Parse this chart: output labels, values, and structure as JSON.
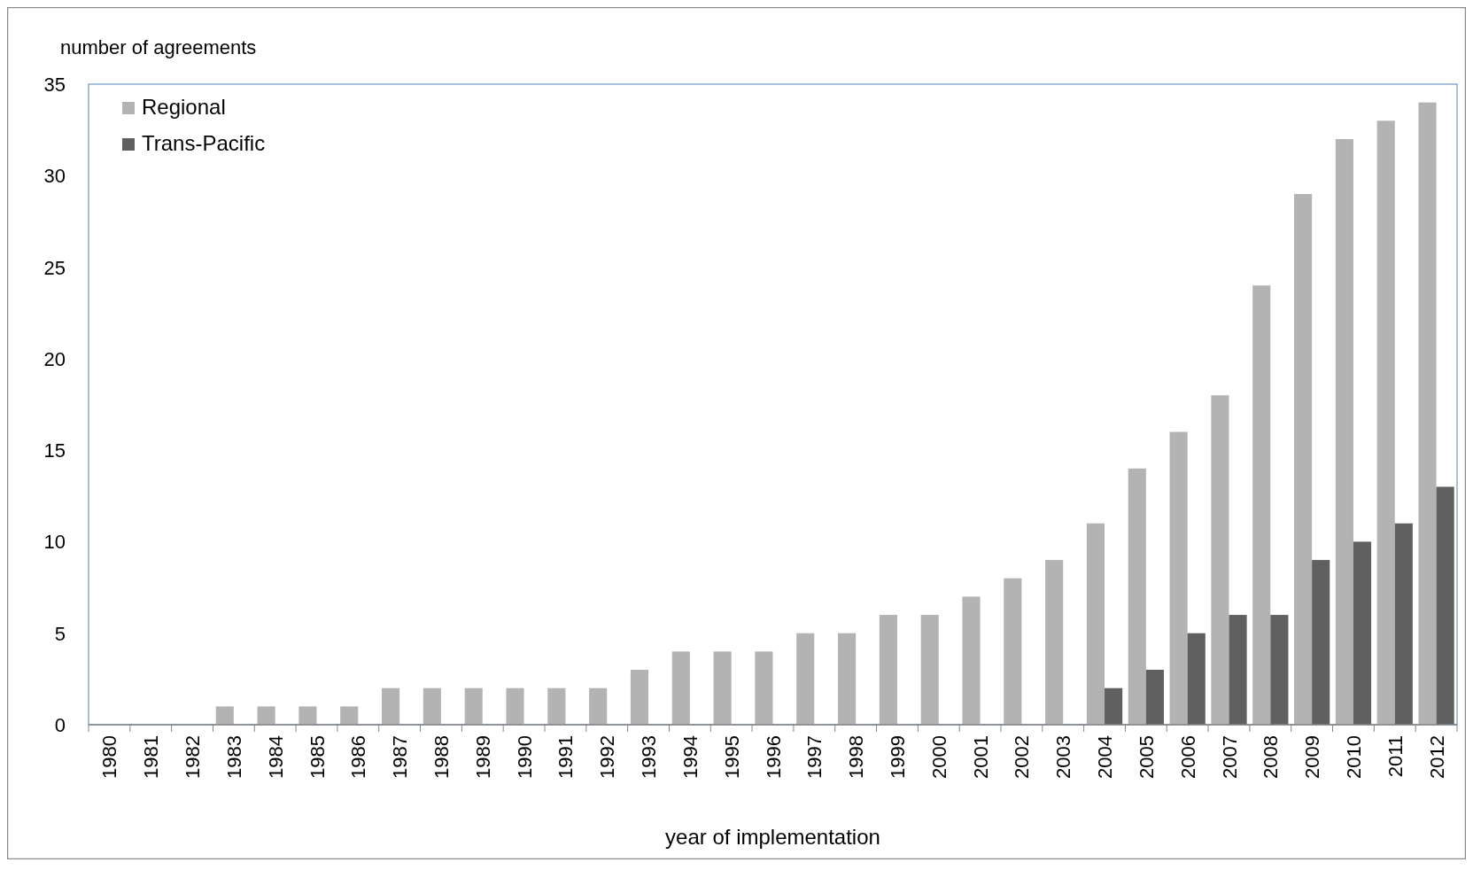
{
  "chart_data": {
    "type": "bar",
    "ylabel": "number of agreements",
    "xlabel": "year of implementation",
    "categories": [
      "1980",
      "1981",
      "1982",
      "1983",
      "1984",
      "1985",
      "1986",
      "1987",
      "1988",
      "1989",
      "1990",
      "1991",
      "1992",
      "1993",
      "1994",
      "1995",
      "1996",
      "1997",
      "1998",
      "1999",
      "2000",
      "2001",
      "2002",
      "2003",
      "2004",
      "2005",
      "2006",
      "2007",
      "2008",
      "2009",
      "2010",
      "2011",
      "2012"
    ],
    "series": [
      {
        "name": "Regional",
        "color": "#b3b3b3",
        "values": [
          0,
          0,
          0,
          1,
          1,
          1,
          1,
          2,
          2,
          2,
          2,
          2,
          2,
          3,
          4,
          4,
          4,
          5,
          5,
          6,
          6,
          7,
          8,
          9,
          11,
          14,
          16,
          18,
          24,
          29,
          32,
          33,
          34
        ]
      },
      {
        "name": "Trans-Pacific",
        "color": "#606060",
        "values": [
          0,
          0,
          0,
          0,
          0,
          0,
          0,
          0,
          0,
          0,
          0,
          0,
          0,
          0,
          0,
          0,
          0,
          0,
          0,
          0,
          0,
          0,
          0,
          0,
          2,
          3,
          5,
          6,
          6,
          9,
          10,
          11,
          13
        ]
      }
    ],
    "ylim": [
      0,
      35
    ],
    "yticks": [
      0,
      5,
      10,
      15,
      20,
      25,
      30,
      35
    ],
    "grid": false,
    "legend": "top left"
  }
}
